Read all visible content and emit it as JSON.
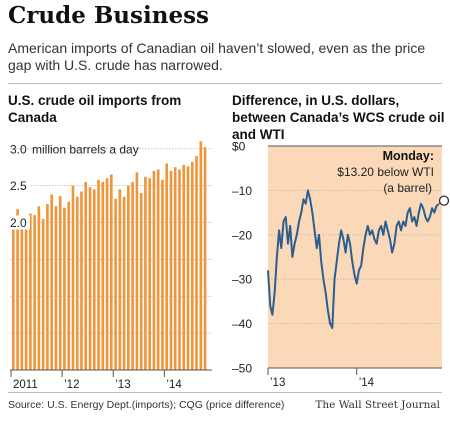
{
  "header": {
    "title": "Crude Business",
    "subtitle": "American imports of Canadian oil haven’t slowed, even as the price gap with U.S. crude has narrowed."
  },
  "footer": {
    "source": "Source: U.S. Energy Dept.(imports); CQG (price difference)",
    "publisher": "The Wall Street Journal"
  },
  "colors": {
    "bar": "#f0953a",
    "line": "#2b5f8f",
    "shade": "#fbd9b8",
    "grid": "#b5b5b5"
  },
  "chart_data": [
    {
      "type": "bar",
      "title": "U.S. crude oil imports from Canada",
      "ylabel": "",
      "unit_label": "million barrels a day",
      "ylim": [
        0,
        3.2
      ],
      "yticks": [
        {
          "value": 0.0,
          "label": ""
        },
        {
          "value": 0.5,
          "label": ""
        },
        {
          "value": 1.0,
          "label": ""
        },
        {
          "value": 1.5,
          "label": ""
        },
        {
          "value": 2.0,
          "label": "2.0"
        },
        {
          "value": 2.5,
          "label": "2.5"
        },
        {
          "value": 3.0,
          "label": "3.0"
        }
      ],
      "xticks": [
        "2011",
        "’12",
        "’13",
        "’14"
      ],
      "xtick_months": [
        0,
        12,
        24,
        36
      ],
      "series": [
        {
          "values": [
            2.05,
            2.18,
            2.03,
            2.08,
            2.12,
            2.1,
            2.22,
            2.05,
            2.25,
            2.38,
            2.22,
            2.36,
            2.2,
            2.28,
            2.5,
            2.35,
            2.42,
            2.55,
            2.48,
            2.45,
            2.58,
            2.55,
            2.6,
            2.65,
            2.32,
            2.45,
            2.35,
            2.5,
            2.55,
            2.68,
            2.4,
            2.62,
            2.6,
            2.7,
            2.72,
            2.58,
            2.8,
            2.7,
            2.75,
            2.72,
            2.78,
            2.76,
            2.82,
            2.9,
            3.1,
            3.02
          ]
        }
      ]
    },
    {
      "type": "line",
      "title": "Difference, in U.S. dollars, between Canada’s WCS crude oil and WTI",
      "ylabel": "",
      "ylim": [
        -50,
        0
      ],
      "yticks": [
        {
          "value": 0,
          "label": "$0"
        },
        {
          "value": -10,
          "label": "–10"
        },
        {
          "value": -20,
          "label": "–20"
        },
        {
          "value": -30,
          "label": "–30"
        },
        {
          "value": -40,
          "label": "–40"
        },
        {
          "value": -50,
          "label": "–50"
        }
      ],
      "xticks": [
        "’13",
        "’14"
      ],
      "xtick_months": [
        0,
        12
      ],
      "annotation": {
        "heading": "Monday:",
        "line1": "$13.20 below WTI",
        "line2": "(a barrel)",
        "value": -13.2
      },
      "series": [
        {
          "x": [
            0,
            0.3,
            0.6,
            0.9,
            1.2,
            1.5,
            1.8,
            2.1,
            2.4,
            2.7,
            3.0,
            3.3,
            3.6,
            3.9,
            4.2,
            4.5,
            4.8,
            5.1,
            5.4,
            5.7,
            6.0,
            6.3,
            6.6,
            6.9,
            7.2,
            7.5,
            7.8,
            8.1,
            8.4,
            8.7,
            9.0,
            9.3,
            9.6,
            9.9,
            10.2,
            10.5,
            10.8,
            11.1,
            11.4,
            11.7,
            12.0,
            12.3,
            12.6,
            12.9,
            13.2,
            13.5,
            13.8,
            14.1,
            14.4,
            14.7,
            15.0,
            15.3,
            15.6,
            15.9,
            16.2,
            16.5,
            16.8,
            17.1,
            17.4,
            17.7,
            18.0,
            18.3,
            18.6,
            18.9,
            19.2,
            19.5,
            19.8,
            20.1,
            20.4,
            20.7,
            21.0,
            21.3,
            21.6,
            21.9,
            22.2,
            22.5,
            22.8,
            23.0
          ],
          "values": [
            -28,
            -36,
            -38,
            -33,
            -25,
            -19,
            -23,
            -17,
            -16,
            -22,
            -18,
            -25,
            -22,
            -20,
            -17,
            -15,
            -12,
            -13,
            -10,
            -12,
            -15,
            -19,
            -23,
            -20,
            -26,
            -30,
            -33,
            -37,
            -40,
            -41,
            -30,
            -26,
            -22,
            -19,
            -21,
            -24,
            -20,
            -22,
            -26,
            -29,
            -31,
            -28,
            -27,
            -23,
            -20,
            -18,
            -20,
            -19,
            -21,
            -22,
            -19,
            -18,
            -20,
            -17,
            -19,
            -21,
            -24,
            -22,
            -18,
            -17,
            -19,
            -17,
            -18,
            -15,
            -14,
            -17,
            -16,
            -18,
            -15,
            -13,
            -14,
            -16,
            -17,
            -16,
            -14,
            -15,
            -13.5,
            -13.2
          ]
        }
      ]
    }
  ]
}
